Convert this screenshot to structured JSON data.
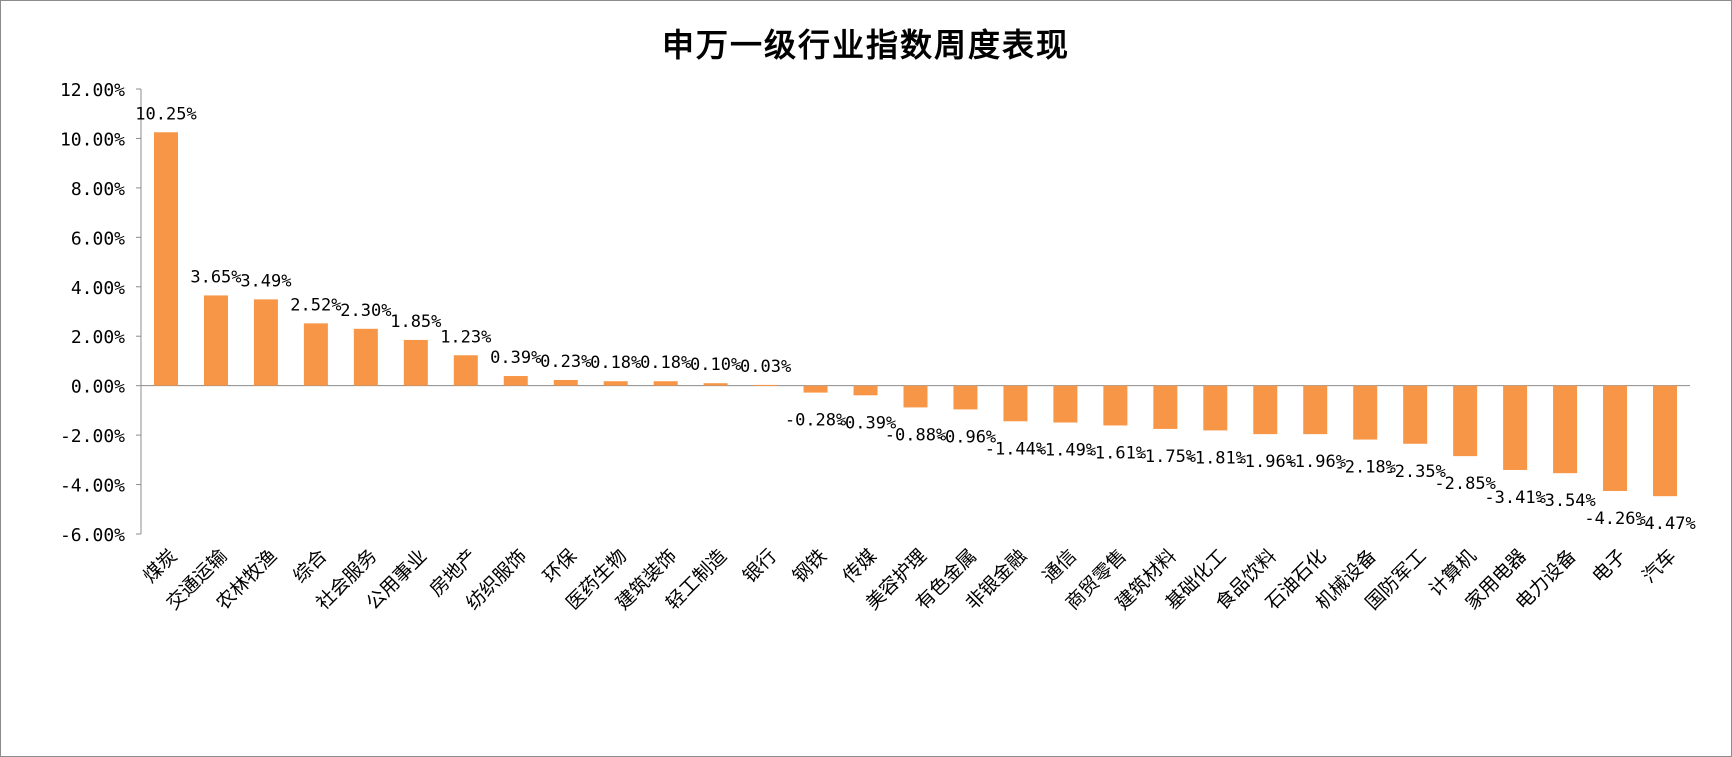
{
  "chart_data": {
    "type": "bar",
    "title": "申万一级行业指数周度表现",
    "xlabel": "",
    "ylabel": "",
    "ylim": [
      -0.06,
      0.12
    ],
    "yticks": [
      -0.06,
      -0.04,
      -0.02,
      0.0,
      0.02,
      0.04,
      0.06,
      0.08,
      0.1,
      0.12
    ],
    "ytick_labels": [
      "-6.00%",
      "-4.00%",
      "-2.00%",
      "0.00%",
      "2.00%",
      "4.00%",
      "6.00%",
      "8.00%",
      "10.00%",
      "12.00%"
    ],
    "grid": false,
    "legend": "none",
    "bar_color": "#F79646",
    "categories": [
      "煤炭",
      "交通运输",
      "农林牧渔",
      "综合",
      "社会服务",
      "公用事业",
      "房地产",
      "纺织服饰",
      "环保",
      "医药生物",
      "建筑装饰",
      "轻工制造",
      "银行",
      "钢铁",
      "传媒",
      "美容护理",
      "有色金属",
      "非银金融",
      "通信",
      "商贸零售",
      "建筑材料",
      "基础化工",
      "食品饮料",
      "石油石化",
      "机械设备",
      "国防军工",
      "计算机",
      "家用电器",
      "电力设备",
      "电子",
      "汽车"
    ],
    "values": [
      0.1025,
      0.0365,
      0.0349,
      0.0252,
      0.023,
      0.0185,
      0.0123,
      0.0039,
      0.0023,
      0.0018,
      0.0018,
      0.001,
      0.0003,
      -0.0028,
      -0.0039,
      -0.0088,
      -0.0096,
      -0.0144,
      -0.0149,
      -0.0161,
      -0.0175,
      -0.0181,
      -0.0196,
      -0.0196,
      -0.0218,
      -0.0235,
      -0.0285,
      -0.0341,
      -0.0354,
      -0.0426,
      -0.0447
    ],
    "data_labels": [
      "10.25%",
      "3.65%",
      "3.49%",
      "2.52%",
      "2.30%",
      "1.85%",
      "1.23%",
      "0.39%",
      "0.23%",
      "0.18%",
      "0.18%",
      "0.10%",
      "0.03%",
      "-0.28%",
      "-0.39%",
      "-0.88%",
      "-0.96%",
      "-1.44%",
      "-1.49%",
      "-1.61%",
      "-1.75%",
      "-1.81%",
      "-1.96%",
      "-1.96%",
      "-2.18%",
      "-2.35%",
      "-2.85%",
      "-3.41%",
      "-3.54%",
      "-4.26%",
      "-4.47%"
    ]
  }
}
